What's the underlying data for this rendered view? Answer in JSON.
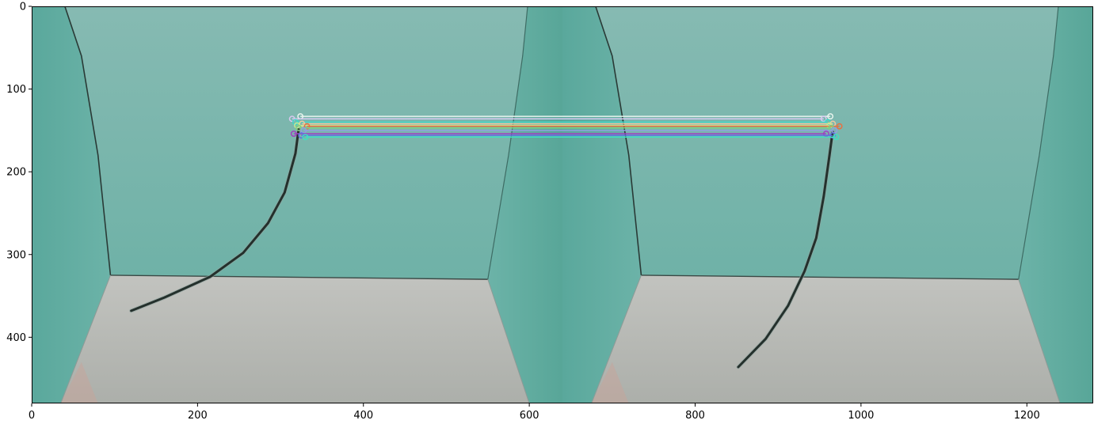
{
  "chart_data": {
    "type": "image",
    "title": "",
    "xlabel": "",
    "ylabel": "",
    "xlim": [
      0,
      1280
    ],
    "ylim": [
      480,
      0
    ],
    "x_ticks": [
      0,
      200,
      400,
      600,
      800,
      1000,
      1200
    ],
    "y_ticks": [
      0,
      100,
      200,
      300,
      400
    ],
    "grid": false,
    "panels": [
      {
        "name": "left",
        "x_range": [
          0,
          640
        ]
      },
      {
        "name": "right",
        "x_range": [
          640,
          1280
        ]
      }
    ],
    "matches": [
      {
        "x1": 324,
        "y1": 133,
        "x2": 963,
        "y2": 133,
        "color": "#e8f4ee"
      },
      {
        "x1": 314,
        "y1": 136,
        "x2": 955,
        "y2": 136,
        "color": "#d8c8f0"
      },
      {
        "x1": 318,
        "y1": 140,
        "x2": 960,
        "y2": 140,
        "color": "#40d8c8"
      },
      {
        "x1": 326,
        "y1": 142,
        "x2": 966,
        "y2": 142,
        "color": "#f0c8a0"
      },
      {
        "x1": 320,
        "y1": 144,
        "x2": 962,
        "y2": 144,
        "color": "#c8e890"
      },
      {
        "x1": 332,
        "y1": 145,
        "x2": 974,
        "y2": 145,
        "color": "#e87040"
      },
      {
        "x1": 322,
        "y1": 147,
        "x2": 964,
        "y2": 147,
        "color": "#80d080"
      },
      {
        "x1": 328,
        "y1": 150,
        "x2": 968,
        "y2": 150,
        "color": "#90a0e0"
      },
      {
        "x1": 316,
        "y1": 154,
        "x2": 958,
        "y2": 154,
        "color": "#a040c0"
      },
      {
        "x1": 325,
        "y1": 156,
        "x2": 966,
        "y2": 156,
        "color": "#6070e0"
      },
      {
        "x1": 330,
        "y1": 158,
        "x2": 970,
        "y2": 158,
        "color": "#40e0c0"
      }
    ],
    "cables": [
      {
        "panel": "left",
        "points": [
          [
            322,
            148
          ],
          [
            318,
            178
          ],
          [
            305,
            225
          ],
          [
            285,
            262
          ],
          [
            255,
            298
          ],
          [
            215,
            327
          ],
          [
            160,
            352
          ],
          [
            120,
            368
          ]
        ]
      },
      {
        "panel": "right",
        "points": [
          [
            966,
            150
          ],
          [
            962,
            180
          ],
          [
            955,
            230
          ],
          [
            946,
            280
          ],
          [
            932,
            320
          ],
          [
            912,
            362
          ],
          [
            885,
            402
          ],
          [
            852,
            436
          ]
        ]
      }
    ],
    "colors": {
      "wall": "#7ab4aa",
      "wall_dark": "#5eaa9e",
      "floor": "#b7b9b3",
      "cable": "#24302c"
    }
  }
}
